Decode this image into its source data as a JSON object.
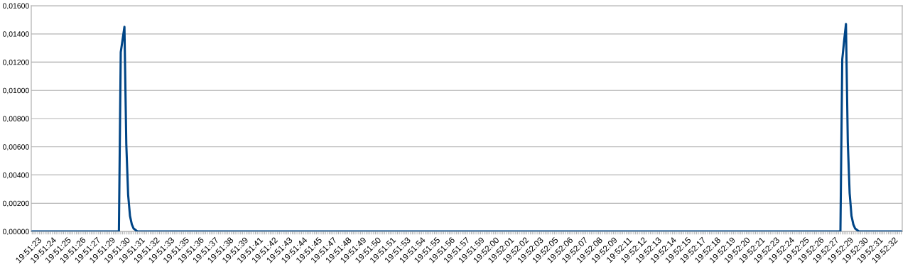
{
  "chart_data": {
    "type": "line",
    "color": "#004586",
    "grid": "y",
    "legend": false,
    "marker": "none",
    "line_style": "solid",
    "ylim": [
      0,
      0.016
    ],
    "yticks": [
      {
        "value": 0,
        "label": "0,00000"
      },
      {
        "value": 0.002,
        "label": "0,00200"
      },
      {
        "value": 0.004,
        "label": "0,00400"
      },
      {
        "value": 0.006,
        "label": "0,00600"
      },
      {
        "value": 0.008,
        "label": "0,00800"
      },
      {
        "value": 0.01,
        "label": "0,01000"
      },
      {
        "value": 0.012,
        "label": "0,01200"
      },
      {
        "value": 0.014,
        "label": "0,01400"
      },
      {
        "value": 0.016,
        "label": "0,01600"
      }
    ],
    "categories": [
      null,
      null,
      null,
      "19:51:23",
      null,
      null,
      null,
      null,
      null,
      null,
      null,
      "19:51:24",
      null,
      null,
      null,
      null,
      null,
      null,
      null,
      "19:51:25",
      null,
      null,
      null,
      null,
      null,
      null,
      null,
      "19:51:26",
      null,
      null,
      null,
      null,
      null,
      null,
      null,
      "19:51:27",
      null,
      null,
      null,
      null,
      null,
      null,
      null,
      "19:51:29",
      null,
      null,
      null,
      null,
      null,
      null,
      null,
      "19:51:30",
      null,
      null,
      null,
      null,
      null,
      null,
      null,
      "19:51:31",
      null,
      null,
      null,
      null,
      null,
      null,
      null,
      "19:51:32",
      null,
      null,
      null,
      null,
      null,
      null,
      null,
      "19:51:33",
      null,
      null,
      null,
      null,
      null,
      null,
      null,
      "19:51:35",
      null,
      null,
      null,
      null,
      null,
      null,
      null,
      "19:51:36",
      null,
      null,
      null,
      null,
      null,
      null,
      null,
      "19:51:37",
      null,
      null,
      null,
      null,
      null,
      null,
      null,
      "19:51:38",
      null,
      null,
      null,
      null,
      null,
      null,
      null,
      "19:51:39",
      null,
      null,
      null,
      null,
      null,
      null,
      null,
      "19:51:41",
      null,
      null,
      null,
      null,
      null,
      null,
      null,
      "19:51:42",
      null,
      null,
      null,
      null,
      null,
      null,
      null,
      "19:51:43",
      null,
      null,
      null,
      null,
      null,
      null,
      null,
      "19:51:44",
      null,
      null,
      null,
      null,
      null,
      null,
      null,
      "19:51:45",
      null,
      null,
      null,
      null,
      null,
      null,
      null,
      "19:51:47",
      null,
      null,
      null,
      null,
      null,
      null,
      null,
      "19:51:48",
      null,
      null,
      null,
      null,
      null,
      null,
      null,
      "19:51:49",
      null,
      null,
      null,
      null,
      null,
      null,
      null,
      "19:51:50",
      null,
      null,
      null,
      null,
      null,
      null,
      null,
      "19:51:51",
      null,
      null,
      null,
      null,
      null,
      null,
      null,
      "19:51:53",
      null,
      null,
      null,
      null,
      null,
      null,
      null,
      "19:51:54",
      null,
      null,
      null,
      null,
      null,
      null,
      null,
      "19:51:55",
      null,
      null,
      null,
      null,
      null,
      null,
      null,
      "19:51:56",
      null,
      null,
      null,
      null,
      null,
      null,
      null,
      "19:51:57",
      null,
      null,
      null,
      null,
      null,
      null,
      null,
      "19:51:59",
      null,
      null,
      null,
      null,
      null,
      null,
      null,
      "19:52:00",
      null,
      null,
      null,
      null,
      null,
      null,
      null,
      "19:52:01",
      null,
      null,
      null,
      null,
      null,
      null,
      null,
      "19:52:02",
      null,
      null,
      null,
      null,
      null,
      null,
      null,
      "19:52:03",
      null,
      null,
      null,
      null,
      null,
      null,
      null,
      "19:52:05",
      null,
      null,
      null,
      null,
      null,
      null,
      null,
      "19:52:06",
      null,
      null,
      null,
      null,
      null,
      null,
      null,
      "19:52:07",
      null,
      null,
      null,
      null,
      null,
      null,
      null,
      "19:52:08",
      null,
      null,
      null,
      null,
      null,
      null,
      null,
      "19:52:09",
      null,
      null,
      null,
      null,
      null,
      null,
      null,
      "19:52:11",
      null,
      null,
      null,
      null,
      null,
      null,
      null,
      "19:52:12",
      null,
      null,
      null,
      null,
      null,
      null,
      null,
      "19:52:13",
      null,
      null,
      null,
      null,
      null,
      null,
      null,
      "19:52:14",
      null,
      null,
      null,
      null,
      null,
      null,
      null,
      "19:52:15",
      null,
      null,
      null,
      null,
      null,
      null,
      null,
      "19:52:17",
      null,
      null,
      null,
      null,
      null,
      null,
      null,
      "19:52:18",
      null,
      null,
      null,
      null,
      null,
      null,
      null,
      "19:52:19",
      null,
      null,
      null,
      null,
      null,
      null,
      null,
      "19:52:20",
      null,
      null,
      null,
      null,
      null,
      null,
      null,
      "19:52:21",
      null,
      null,
      null,
      null,
      null,
      null,
      null,
      "19:52:23",
      null,
      null,
      null,
      null,
      null,
      null,
      null,
      "19:52:24",
      null,
      null,
      null,
      null,
      null,
      null,
      null,
      "19:52:25",
      null,
      null,
      null,
      null,
      null,
      null,
      null,
      "19:52:26",
      null,
      null,
      null,
      null,
      null,
      null,
      null,
      "19:52:27",
      null,
      null,
      null,
      null,
      null,
      null,
      null,
      "19:52:29",
      null,
      null,
      null,
      null,
      null,
      null,
      null,
      "19:52:30",
      null,
      null,
      null,
      null,
      null,
      null,
      null,
      "19:52:31",
      null,
      null,
      null,
      null,
      null,
      null,
      null,
      "19:52:32",
      null,
      null,
      null,
      null
    ],
    "values": [
      0,
      0,
      0,
      0,
      0,
      0,
      0,
      0,
      0,
      0,
      0,
      0,
      0,
      0,
      0,
      0,
      0,
      0,
      0,
      0,
      0,
      0,
      0,
      0,
      0,
      0,
      0,
      0,
      0,
      0,
      0,
      0,
      0,
      0,
      0,
      0,
      0,
      0,
      0,
      0,
      0,
      0,
      0,
      0,
      0,
      0,
      0,
      0,
      0.0127,
      0.0136,
      0.0145,
      0.0062,
      0.0026,
      0.0011,
      0.0005,
      0.0002,
      0.0001,
      0,
      0,
      0,
      0,
      0,
      0,
      0,
      0,
      0,
      0,
      0,
      0,
      0,
      0,
      0,
      0,
      0,
      0,
      0,
      0,
      0,
      0,
      0,
      0,
      0,
      0,
      0,
      0,
      0,
      0,
      0,
      0,
      0,
      0,
      0,
      0,
      0,
      0,
      0,
      0,
      0,
      0,
      0,
      0,
      0,
      0,
      0,
      0,
      0,
      0,
      0,
      0,
      0,
      0,
      0,
      0,
      0,
      0,
      0,
      0,
      0,
      0,
      0,
      0,
      0,
      0,
      0,
      0,
      0,
      0,
      0,
      0,
      0,
      0,
      0,
      0,
      0,
      0,
      0,
      0,
      0,
      0,
      0,
      0,
      0,
      0,
      0,
      0,
      0,
      0,
      0,
      0,
      0,
      0,
      0,
      0,
      0,
      0,
      0,
      0,
      0,
      0,
      0,
      0,
      0,
      0,
      0,
      0,
      0,
      0,
      0,
      0,
      0,
      0,
      0,
      0,
      0,
      0,
      0,
      0,
      0,
      0,
      0,
      0,
      0,
      0,
      0,
      0,
      0,
      0,
      0,
      0,
      0,
      0,
      0,
      0,
      0,
      0,
      0,
      0,
      0,
      0,
      0,
      0,
      0,
      0,
      0,
      0,
      0,
      0,
      0,
      0,
      0,
      0,
      0,
      0,
      0,
      0,
      0,
      0,
      0,
      0,
      0,
      0,
      0,
      0,
      0,
      0,
      0,
      0,
      0,
      0,
      0,
      0,
      0,
      0,
      0,
      0,
      0,
      0,
      0,
      0,
      0,
      0,
      0,
      0,
      0,
      0,
      0,
      0,
      0,
      0,
      0,
      0,
      0,
      0,
      0,
      0,
      0,
      0,
      0,
      0,
      0,
      0,
      0,
      0,
      0,
      0,
      0,
      0,
      0,
      0,
      0,
      0,
      0,
      0,
      0,
      0,
      0,
      0,
      0,
      0,
      0,
      0,
      0,
      0,
      0,
      0,
      0,
      0,
      0,
      0,
      0,
      0,
      0,
      0,
      0,
      0,
      0,
      0,
      0,
      0,
      0,
      0,
      0,
      0,
      0,
      0,
      0,
      0,
      0,
      0,
      0,
      0,
      0,
      0,
      0,
      0,
      0,
      0,
      0,
      0,
      0,
      0,
      0,
      0,
      0,
      0,
      0,
      0,
      0,
      0,
      0,
      0,
      0,
      0,
      0,
      0,
      0,
      0,
      0,
      0,
      0,
      0,
      0,
      0,
      0,
      0,
      0,
      0,
      0,
      0,
      0,
      0,
      0,
      0,
      0,
      0,
      0,
      0,
      0,
      0,
      0,
      0,
      0,
      0,
      0,
      0,
      0,
      0,
      0,
      0,
      0,
      0,
      0,
      0,
      0,
      0,
      0,
      0,
      0,
      0,
      0,
      0,
      0,
      0,
      0,
      0,
      0,
      0,
      0,
      0,
      0,
      0,
      0,
      0,
      0,
      0,
      0,
      0,
      0,
      0,
      0,
      0,
      0,
      0,
      0,
      0,
      0,
      0,
      0,
      0,
      0,
      0,
      0,
      0,
      0,
      0,
      0,
      0,
      0,
      0,
      0,
      0,
      0,
      0,
      0,
      0,
      0,
      0,
      0,
      0,
      0,
      0,
      0,
      0,
      0,
      0,
      0,
      0,
      0,
      0,
      0.0122,
      0.0135,
      0.0147,
      0.0063,
      0.0027,
      0.0011,
      0.0005,
      0.0002,
      0.0001,
      0,
      0,
      0,
      0,
      0,
      0,
      0,
      0,
      0,
      0,
      0,
      0,
      0,
      0,
      0,
      0,
      0,
      0,
      0,
      0,
      0,
      0,
      0,
      0
    ]
  }
}
